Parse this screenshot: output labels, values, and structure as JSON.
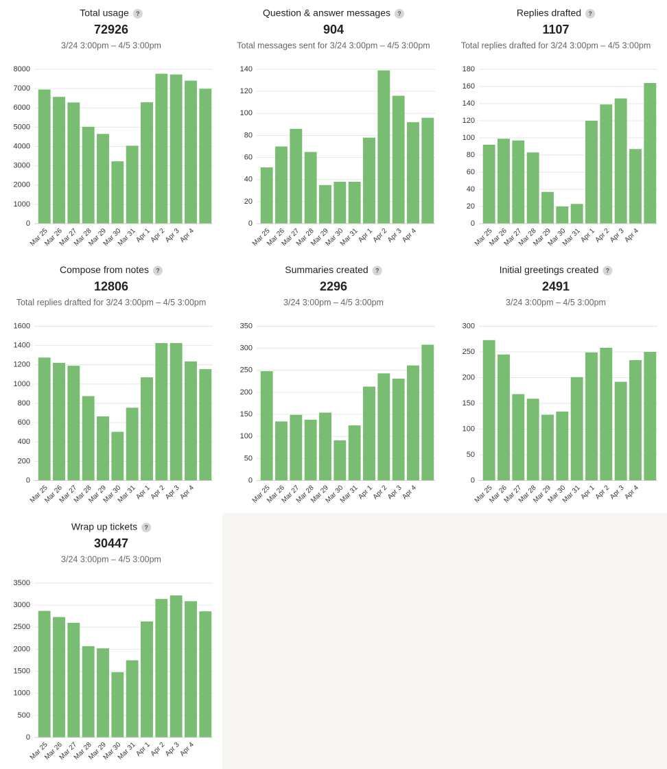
{
  "help_icon": "?",
  "chart_data": [
    {
      "type": "bar",
      "title": "Total usage",
      "total": 72926,
      "subtitle": "3/24 3:00pm – 4/5 3:00pm",
      "categories": [
        "Mar 25",
        "Mar 26",
        "Mar 27",
        "Mar 28",
        "Mar 29",
        "Mar 30",
        "Mar 31",
        "Apr 1",
        "Apr 2",
        "Apr 3",
        "Apr 4",
        null
      ],
      "values": [
        6950,
        6570,
        6280,
        5020,
        4650,
        3230,
        4040,
        6290,
        7770,
        7730,
        7410,
        6990
      ],
      "color": "#79bd72",
      "ylim": [
        0,
        8000
      ],
      "yticks": [
        0,
        1000,
        2000,
        3000,
        4000,
        5000,
        6000,
        7000,
        8000
      ],
      "grid": true
    },
    {
      "type": "bar",
      "title": "Question & answer messages",
      "total": 904,
      "subtitle": "Total messages sent for 3/24 3:00pm – 4/5 3:00pm",
      "categories": [
        "Mar 25",
        "Mar 26",
        "Mar 27",
        "Mar 28",
        "Mar 29",
        "Mar 30",
        "Mar 31",
        "Apr 1",
        "Apr 2",
        "Apr 3",
        "Apr 4",
        null
      ],
      "values": [
        51,
        70,
        86,
        65,
        35,
        38,
        38,
        78,
        139,
        116,
        92,
        96
      ],
      "color": "#79bd72",
      "ylim": [
        0,
        140
      ],
      "yticks": [
        0,
        20,
        40,
        60,
        80,
        100,
        120,
        140
      ],
      "grid": true
    },
    {
      "type": "bar",
      "title": "Replies drafted",
      "total": 1107,
      "subtitle": "Total replies drafted for 3/24 3:00pm – 4/5 3:00pm",
      "categories": [
        "Mar 25",
        "Mar 26",
        "Mar 27",
        "Mar 28",
        "Mar 29",
        "Mar 30",
        "Mar 31",
        "Apr 1",
        "Apr 2",
        "Apr 3",
        "Apr 4",
        null
      ],
      "values": [
        92,
        99,
        97,
        83,
        37,
        20,
        23,
        120,
        139,
        146,
        87,
        164
      ],
      "color": "#79bd72",
      "ylim": [
        0,
        180
      ],
      "yticks": [
        0,
        20,
        40,
        60,
        80,
        100,
        120,
        140,
        160,
        180
      ],
      "grid": true
    },
    {
      "type": "bar",
      "title": "Compose from notes",
      "total": 12806,
      "subtitle": "Total replies drafted for 3/24 3:00pm – 4/5 3:00pm",
      "categories": [
        "Mar 25",
        "Mar 26",
        "Mar 27",
        "Mar 28",
        "Mar 29",
        "Mar 30",
        "Mar 31",
        "Apr 1",
        "Apr 2",
        "Apr 3",
        "Apr 4",
        null
      ],
      "values": [
        1275,
        1220,
        1190,
        875,
        665,
        505,
        755,
        1070,
        1425,
        1425,
        1235,
        1155
      ],
      "color": "#79bd72",
      "ylim": [
        0,
        1600
      ],
      "yticks": [
        0,
        200,
        400,
        600,
        800,
        1000,
        1200,
        1400,
        1600
      ],
      "grid": true
    },
    {
      "type": "bar",
      "title": "Summaries created",
      "total": 2296,
      "subtitle": "3/24 3:00pm – 4/5 3:00pm",
      "categories": [
        "Mar 25",
        "Mar 26",
        "Mar 27",
        "Mar 28",
        "Mar 29",
        "Mar 30",
        "Mar 31",
        "Apr 1",
        "Apr 2",
        "Apr 3",
        "Apr 4",
        null
      ],
      "values": [
        248,
        134,
        149,
        138,
        154,
        91,
        125,
        213,
        243,
        231,
        261,
        308
      ],
      "color": "#79bd72",
      "ylim": [
        0,
        350
      ],
      "yticks": [
        0,
        50,
        100,
        150,
        200,
        250,
        300,
        350
      ],
      "grid": true
    },
    {
      "type": "bar",
      "title": "Initial greetings created",
      "total": 2491,
      "subtitle": "3/24 3:00pm – 4/5 3:00pm",
      "categories": [
        "Mar 25",
        "Mar 26",
        "Mar 27",
        "Mar 28",
        "Mar 29",
        "Mar 30",
        "Mar 31",
        "Apr 1",
        "Apr 2",
        "Apr 3",
        "Apr 4",
        null
      ],
      "values": [
        273,
        245,
        168,
        159,
        128,
        134,
        201,
        249,
        258,
        192,
        234,
        250
      ],
      "color": "#79bd72",
      "ylim": [
        0,
        300
      ],
      "yticks": [
        0,
        50,
        100,
        150,
        200,
        250,
        300
      ],
      "grid": true
    },
    {
      "type": "bar",
      "title": "Wrap up tickets",
      "total": 30447,
      "subtitle": "3/24 3:00pm – 4/5 3:00pm",
      "categories": [
        "Mar 25",
        "Mar 26",
        "Mar 27",
        "Mar 28",
        "Mar 29",
        "Mar 30",
        "Mar 31",
        "Apr 1",
        "Apr 2",
        "Apr 3",
        "Apr 4",
        null
      ],
      "values": [
        2870,
        2730,
        2600,
        2070,
        2020,
        1480,
        1750,
        2630,
        3140,
        3220,
        3090,
        2860
      ],
      "color": "#79bd72",
      "ylim": [
        0,
        3500
      ],
      "yticks": [
        0,
        500,
        1000,
        1500,
        2000,
        2500,
        3000,
        3500
      ],
      "grid": true
    }
  ]
}
